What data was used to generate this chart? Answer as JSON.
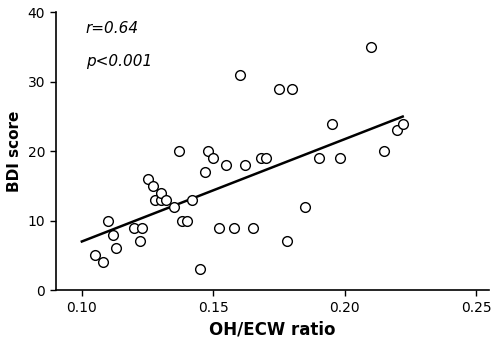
{
  "x_data": [
    0.105,
    0.108,
    0.11,
    0.112,
    0.113,
    0.12,
    0.122,
    0.123,
    0.125,
    0.127,
    0.128,
    0.13,
    0.13,
    0.132,
    0.135,
    0.137,
    0.138,
    0.14,
    0.142,
    0.145,
    0.147,
    0.148,
    0.15,
    0.152,
    0.155,
    0.158,
    0.16,
    0.162,
    0.165,
    0.168,
    0.17,
    0.175,
    0.178,
    0.18,
    0.185,
    0.19,
    0.195,
    0.198,
    0.21,
    0.215,
    0.22,
    0.222
  ],
  "y_data": [
    5,
    4,
    10,
    8,
    6,
    9,
    7,
    9,
    16,
    15,
    13,
    13,
    14,
    13,
    12,
    20,
    10,
    10,
    13,
    3,
    17,
    20,
    19,
    9,
    18,
    9,
    31,
    18,
    9,
    19,
    19,
    29,
    7,
    29,
    12,
    19,
    24,
    19,
    35,
    20,
    23,
    24
  ],
  "line_x": [
    0.1,
    0.222
  ],
  "line_y": [
    7.0,
    25.0
  ],
  "xlim": [
    0.09,
    0.255
  ],
  "ylim": [
    0,
    40
  ],
  "xticks": [
    0.1,
    0.15,
    0.2,
    0.25
  ],
  "xtick_labels": [
    "0.10",
    "0.15",
    "0.20",
    "0.25"
  ],
  "yticks": [
    0,
    10,
    20,
    30,
    40
  ],
  "ytick_labels": [
    "0",
    "10",
    "20",
    "30",
    "40"
  ],
  "xlabel": "OH/ECW ratio",
  "ylabel": "BDI score",
  "annotation_r": "r=0.64",
  "annotation_p": "p<0.001",
  "marker_facecolor": "white",
  "marker_edgecolor": "black",
  "marker_size": 7,
  "marker_linewidth": 1.0,
  "line_color": "black",
  "line_width": 1.8,
  "background_color": "white",
  "xlabel_fontsize": 12,
  "ylabel_fontsize": 11,
  "tick_fontsize": 10,
  "annotation_fontsize": 11
}
